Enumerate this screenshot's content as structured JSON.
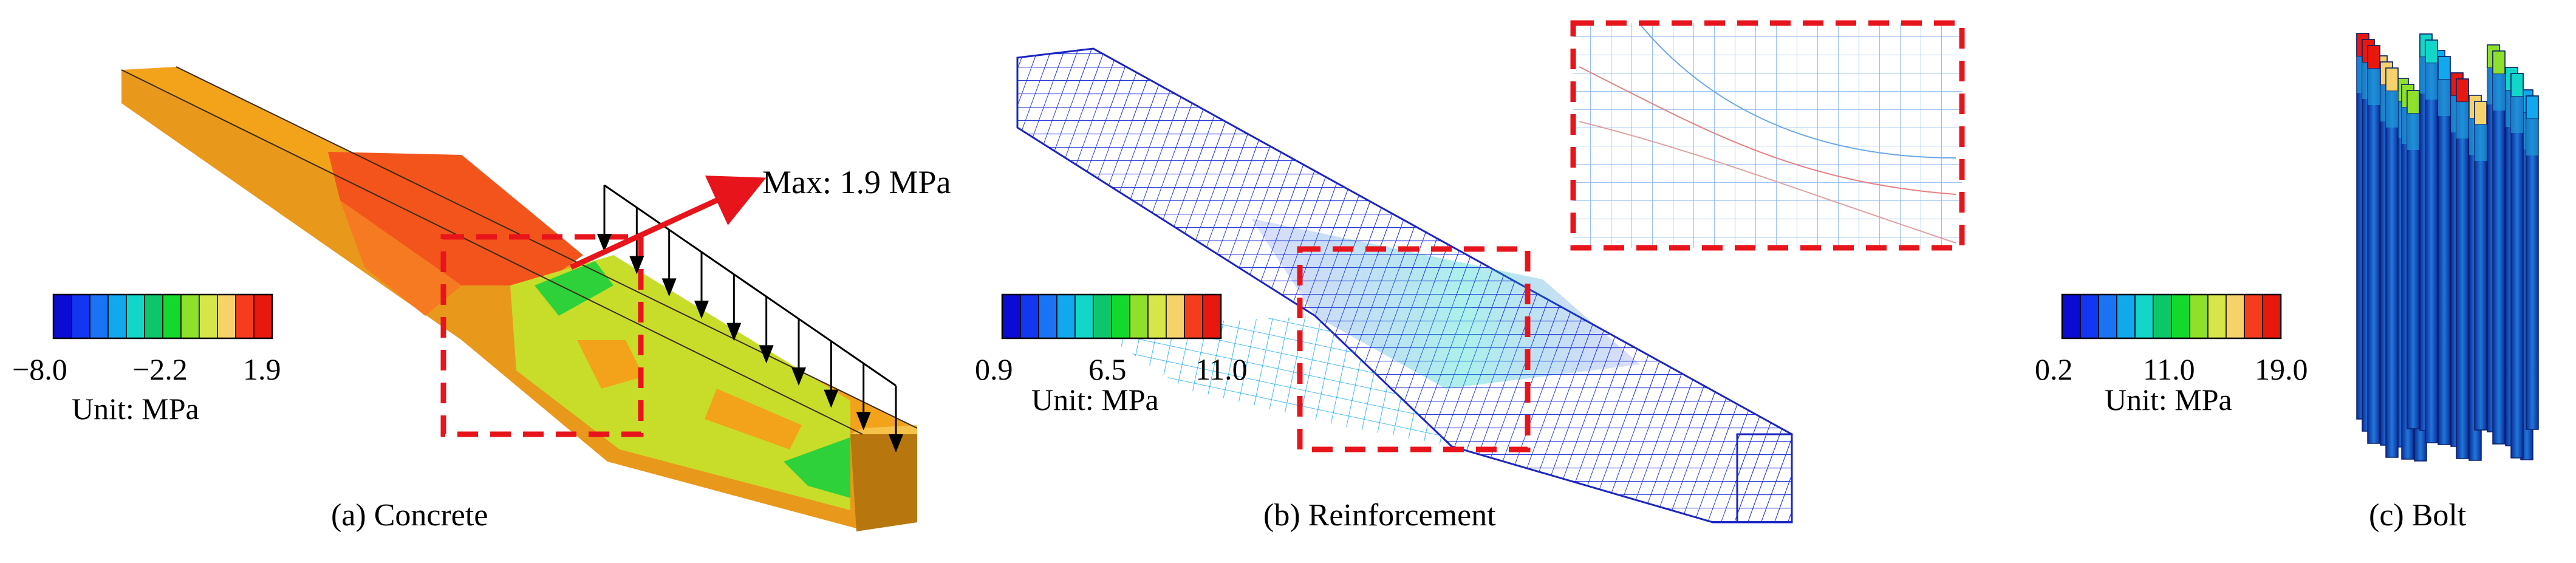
{
  "colors": {
    "concrete_scale": [
      "#0b0bd3",
      "#1336f0",
      "#1a73f5",
      "#12a8ee",
      "#11d6c8",
      "#0ec66a",
      "#12d92b",
      "#8ee02a",
      "#d6e64a",
      "#f6d36a",
      "#f53d1e",
      "#e8180f"
    ],
    "reinforcement_scale": [
      "#0b0bd3",
      "#1336f0",
      "#1a73f5",
      "#12a8ee",
      "#11d6c8",
      "#0ec66a",
      "#12d92b",
      "#8ee02a",
      "#d6e64a",
      "#f6d36a",
      "#f53d1e",
      "#e8180f"
    ],
    "bolt_scale": [
      "#0b0bd3",
      "#1336f0",
      "#1a73f5",
      "#12a8ee",
      "#11d6c8",
      "#0ec66a",
      "#12d92b",
      "#8ee02a",
      "#d6e64a",
      "#f6d36a",
      "#f53d1e",
      "#e8180f"
    ],
    "highlight_box": "#e8141b",
    "concrete_body": "#f2a31a",
    "concrete_hot": "#f3541c",
    "concrete_mid": "#c8dd2a",
    "concrete_green": "#2fd13a",
    "mesh": "#2233d8"
  },
  "panels": {
    "concrete": {
      "caption": "(a)  Concrete",
      "legend": {
        "min": "−8.0",
        "mid": "−2.2",
        "max": "1.9",
        "unit": "Unit:  MPa"
      },
      "annotation": "Max:  1.9 MPa",
      "load_arrow_count": 10
    },
    "reinforcement": {
      "caption": "(b) Reinforcement",
      "legend": {
        "min": "0.9",
        "mid": "6.5",
        "max": "11.0",
        "unit": "Unit:  MPa"
      }
    },
    "bolt": {
      "caption": "(c) Bolt",
      "legend": {
        "min": "0.2",
        "mid": "11.0",
        "max": "19.0",
        "unit": "Unit:  MPa"
      },
      "bolt_count": 24
    }
  }
}
